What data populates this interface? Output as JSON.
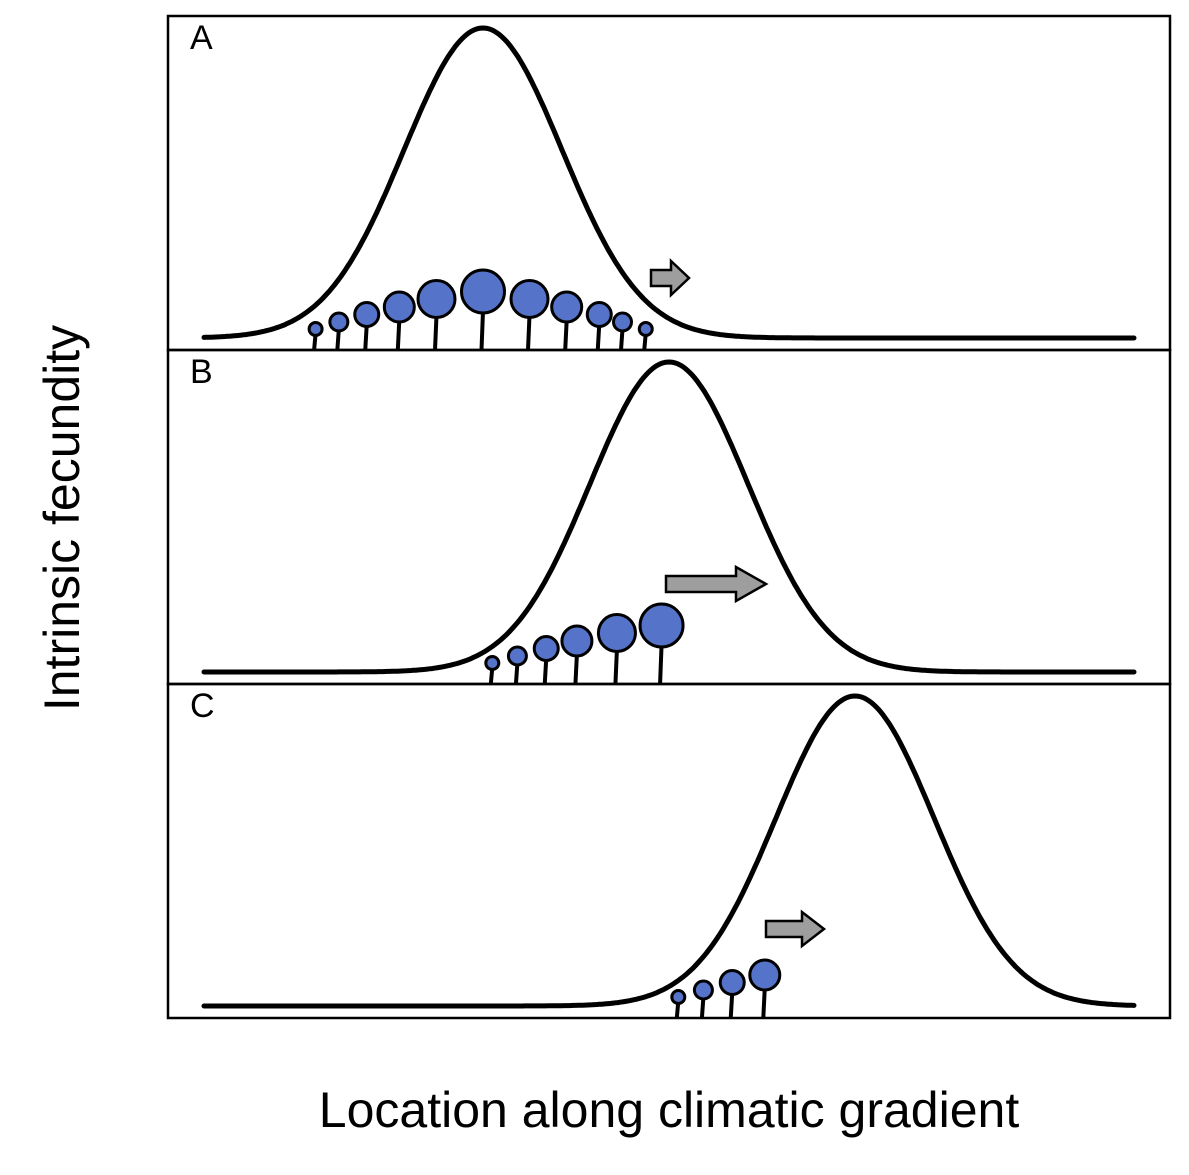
{
  "ylabel": "Intrinsic fecundity",
  "xlabel": "Location along climatic gradient",
  "colors": {
    "circle_fill": "#5573c8",
    "arrow_fill": "#9e9e9e",
    "line": "#000000",
    "background": "#ffffff"
  },
  "panels": [
    {
      "label": "A",
      "curve_peak": 0.3,
      "curve_width": 0.085,
      "arrow_length": "short",
      "population": [
        {
          "loc": 0.12,
          "size": 1
        },
        {
          "loc": 0.145,
          "size": 2
        },
        {
          "loc": 0.175,
          "size": 3
        },
        {
          "loc": 0.21,
          "size": 4
        },
        {
          "loc": 0.25,
          "size": 5
        },
        {
          "loc": 0.3,
          "size": 6
        },
        {
          "loc": 0.35,
          "size": 5
        },
        {
          "loc": 0.39,
          "size": 4
        },
        {
          "loc": 0.425,
          "size": 3
        },
        {
          "loc": 0.45,
          "size": 2
        },
        {
          "loc": 0.475,
          "size": 1
        }
      ]
    },
    {
      "label": "B",
      "curve_peak": 0.5,
      "curve_width": 0.085,
      "arrow_length": "long",
      "population": [
        {
          "loc": 0.31,
          "size": 1
        },
        {
          "loc": 0.337,
          "size": 2
        },
        {
          "loc": 0.368,
          "size": 3
        },
        {
          "loc": 0.401,
          "size": 4
        },
        {
          "loc": 0.444,
          "size": 5
        },
        {
          "loc": 0.492,
          "size": 6
        }
      ]
    },
    {
      "label": "C",
      "curve_peak": 0.7,
      "curve_width": 0.085,
      "arrow_length": "short",
      "population": [
        {
          "loc": 0.51,
          "size": 1
        },
        {
          "loc": 0.537,
          "size": 2
        },
        {
          "loc": 0.568,
          "size": 3
        },
        {
          "loc": 0.603,
          "size": 4
        }
      ]
    }
  ]
}
